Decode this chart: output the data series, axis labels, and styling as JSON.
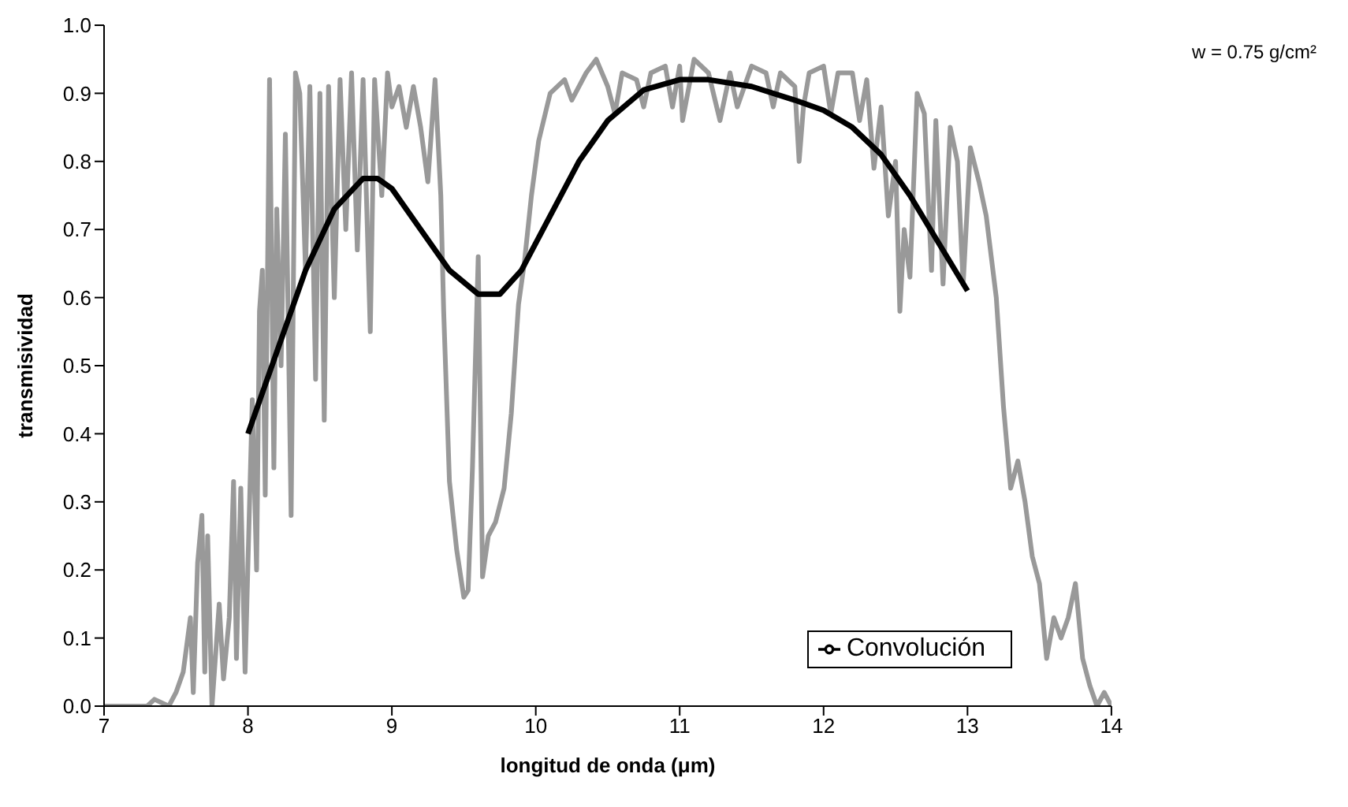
{
  "chart_data": {
    "type": "line",
    "xlabel": "longitud de onda (μm)",
    "ylabel": "transmisividad",
    "annotations": [
      "w = 0.75 g/cm²"
    ],
    "xlim": [
      7,
      14
    ],
    "xticks": [
      7,
      8,
      9,
      10,
      11,
      12,
      13,
      14
    ],
    "ylim": [
      0,
      1
    ],
    "yticks": [
      {
        "value": 0,
        "label": "0.0"
      },
      0.1,
      0.2,
      0.3,
      0.4,
      0.5,
      0.6,
      0.7,
      0.8,
      0.9,
      {
        "value": 1,
        "label": "1.0"
      }
    ],
    "grid": false,
    "legend": "bottom right",
    "marker": "none",
    "line_style": "solid",
    "series": [
      {
        "color": "#999999",
        "x": [
          7.0,
          7.3,
          7.35,
          7.45,
          7.5,
          7.55,
          7.6,
          7.62,
          7.65,
          7.68,
          7.7,
          7.72,
          7.75,
          7.8,
          7.83,
          7.87,
          7.9,
          7.92,
          7.95,
          7.98,
          8.0,
          8.03,
          8.06,
          8.08,
          8.1,
          8.12,
          8.15,
          8.18,
          8.2,
          8.23,
          8.26,
          8.3,
          8.33,
          8.36,
          8.4,
          8.43,
          8.47,
          8.5,
          8.53,
          8.56,
          8.6,
          8.64,
          8.68,
          8.72,
          8.76,
          8.8,
          8.85,
          8.88,
          8.93,
          8.97,
          9.0,
          9.05,
          9.1,
          9.15,
          9.2,
          9.25,
          9.3,
          9.34,
          9.36,
          9.4,
          9.45,
          9.5,
          9.53,
          9.56,
          9.6,
          9.63,
          9.67,
          9.72,
          9.78,
          9.83,
          9.88,
          9.92,
          9.97,
          10.02,
          10.1,
          10.2,
          10.25,
          10.35,
          10.42,
          10.5,
          10.55,
          10.6,
          10.7,
          10.75,
          10.8,
          10.9,
          10.95,
          11.0,
          11.02,
          11.1,
          11.2,
          11.28,
          11.35,
          11.4,
          11.5,
          11.6,
          11.65,
          11.7,
          11.8,
          11.83,
          11.86,
          11.9,
          12.0,
          12.05,
          12.1,
          12.2,
          12.25,
          12.3,
          12.35,
          12.4,
          12.45,
          12.5,
          12.53,
          12.56,
          12.6,
          12.65,
          12.7,
          12.75,
          12.78,
          12.83,
          12.88,
          12.93,
          12.97,
          13.02,
          13.08,
          13.13,
          13.2,
          13.25,
          13.3,
          13.35,
          13.4,
          13.45,
          13.5,
          13.55,
          13.6,
          13.65,
          13.7,
          13.75,
          13.8,
          13.85,
          13.9,
          13.95,
          14.0
        ],
        "values": [
          0.0,
          0.0,
          0.01,
          0.0,
          0.02,
          0.05,
          0.13,
          0.02,
          0.21,
          0.28,
          0.05,
          0.25,
          0.0,
          0.15,
          0.04,
          0.13,
          0.33,
          0.07,
          0.32,
          0.05,
          0.21,
          0.45,
          0.2,
          0.58,
          0.64,
          0.31,
          0.92,
          0.35,
          0.73,
          0.5,
          0.84,
          0.28,
          0.93,
          0.9,
          0.64,
          0.91,
          0.48,
          0.9,
          0.42,
          0.91,
          0.6,
          0.92,
          0.7,
          0.93,
          0.67,
          0.92,
          0.55,
          0.92,
          0.75,
          0.93,
          0.88,
          0.91,
          0.85,
          0.91,
          0.85,
          0.77,
          0.92,
          0.75,
          0.58,
          0.33,
          0.23,
          0.16,
          0.17,
          0.35,
          0.66,
          0.19,
          0.25,
          0.27,
          0.32,
          0.43,
          0.59,
          0.65,
          0.75,
          0.83,
          0.9,
          0.92,
          0.89,
          0.93,
          0.95,
          0.91,
          0.87,
          0.93,
          0.92,
          0.88,
          0.93,
          0.94,
          0.88,
          0.94,
          0.86,
          0.95,
          0.93,
          0.86,
          0.93,
          0.88,
          0.94,
          0.93,
          0.88,
          0.93,
          0.91,
          0.8,
          0.88,
          0.93,
          0.94,
          0.87,
          0.93,
          0.93,
          0.86,
          0.92,
          0.79,
          0.88,
          0.72,
          0.8,
          0.58,
          0.7,
          0.63,
          0.9,
          0.87,
          0.64,
          0.86,
          0.62,
          0.85,
          0.8,
          0.62,
          0.82,
          0.77,
          0.72,
          0.6,
          0.44,
          0.32,
          0.36,
          0.3,
          0.22,
          0.18,
          0.07,
          0.13,
          0.1,
          0.13,
          0.18,
          0.07,
          0.03,
          0.0,
          0.02,
          0.0
        ]
      },
      {
        "name": "Convolución",
        "color": "#000000",
        "x": [
          8.0,
          8.2,
          8.4,
          8.6,
          8.8,
          8.9,
          9.0,
          9.2,
          9.4,
          9.6,
          9.75,
          9.9,
          10.1,
          10.3,
          10.5,
          10.75,
          11.0,
          11.2,
          11.5,
          11.8,
          12.0,
          12.2,
          12.4,
          12.6,
          12.8,
          13.0
        ],
        "values": [
          0.4,
          0.52,
          0.64,
          0.73,
          0.775,
          0.775,
          0.76,
          0.7,
          0.64,
          0.605,
          0.605,
          0.64,
          0.72,
          0.8,
          0.86,
          0.905,
          0.92,
          0.92,
          0.91,
          0.89,
          0.875,
          0.85,
          0.81,
          0.75,
          0.68,
          0.61
        ]
      }
    ]
  }
}
